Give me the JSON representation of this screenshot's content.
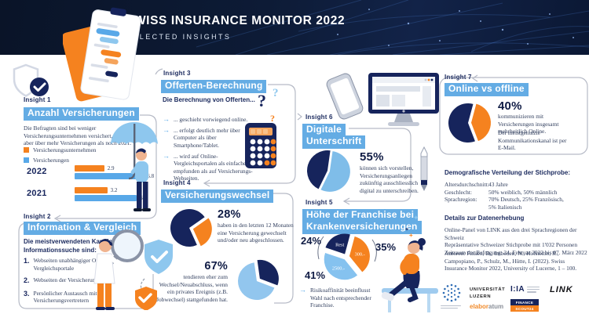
{
  "palette": {
    "navy": "#16245c",
    "orange": "#f5821f",
    "blue": "#58a8e8",
    "lightblue": "#8ec7ee",
    "strip_blue": "#64ace4",
    "header_bg": "#0c1730"
  },
  "header": {
    "title": "SWISS INSURANCE MONITOR 2022",
    "subtitle": "SELECTED INSIGHTS"
  },
  "insight1": {
    "label": "Insight 1",
    "title": "Anzahl Versicherungen",
    "body": "Die Befragten sind bei weniger Versicherungsunternehmen versichert, verfügen aber über mehr Versicherungen als noch 2021.",
    "legend": [
      {
        "label": "Versicherungsunternehmen",
        "color": "#f5821f"
      },
      {
        "label": "Versicherungen",
        "color": "#58a8e8"
      }
    ],
    "chart": {
      "rows": [
        {
          "year": "2022",
          "values": [
            2.9,
            6.8
          ]
        },
        {
          "year": "2021",
          "values": [
            3.2,
            6.1
          ]
        }
      ]
    }
  },
  "insight2": {
    "label": "Insight 2",
    "title": "Information & Vergleich",
    "intro": "Die meistverwendeten Kanäle zur Informationssuche sind:",
    "items": [
      {
        "n": "1.",
        "t": "Webseiten unabhängiger Online-Vergleichsportale"
      },
      {
        "n": "2.",
        "t": "Webseiten der Versicherungen"
      },
      {
        "n": "3.",
        "t": "Persönlicher Austausch mit Versicherungsvertretern"
      }
    ]
  },
  "insight3": {
    "label": "Insight 3",
    "title": "Offerten-Berechnung",
    "intro": "Die Berechnung von Offerten...",
    "bullets": [
      "... geschieht vorwiegend online.",
      "... erfolgt deutlich mehr über Computer als über Smartphone/Tablet.",
      "... wird auf Online-Vergleichsportalen als einfacher empfunden als auf Versicherungs-Webseiten."
    ]
  },
  "insight4": {
    "label": "Insight 4",
    "title": "Versicherungswechsel",
    "stat1": {
      "value": "28%",
      "text": "haben in den letzten 12 Monaten eine Versicherung gewechselt und/oder neu abgeschlossen."
    },
    "stat2": {
      "value": "67%",
      "text": "tendieren eher zum Wechsel/Neuabschluss, wenn ein privates Ereignis (z.B. Jobwechsel) stattgefunden hat."
    }
  },
  "insight5": {
    "label": "Insight 5",
    "title_line1": "Höhe der Franchise bei",
    "title_line2": "Krankenversicherungen",
    "pct_labels": [
      "24%",
      "35%",
      "41%"
    ],
    "bullet": "Risikoaffinität beeinflusst Wahl nach entsprechender Franchise."
  },
  "insight6": {
    "label": "Insight 6",
    "title_line1": "Digitale",
    "title_line2": "Unterschrift",
    "stat": {
      "value": "55%",
      "text": "können sich vorstellen, Versicherungsanliegen zukünftig ausschliesslich digital zu unterschreiben."
    }
  },
  "insight7": {
    "label": "Insight 7",
    "title": "Online vs offline",
    "stat": {
      "value": "40%",
      "text1": "kommunizieren mit Versicherungen insgesamt mehrheitlich Online.",
      "text2": "Der meistgenutzte Kommunikationskanal ist per E-Mail."
    }
  },
  "demographics": {
    "heading": "Demografische Verteilung der Stichprobe:",
    "rows": [
      {
        "term": "Altersdurchschnitt:",
        "value": "43 Jahre"
      },
      {
        "term": "Geschlecht:",
        "value": "50% weiblich, 50% männlich"
      },
      {
        "term": "Sprachregion:",
        "value": "70% Deutsch, 25% Französisch,",
        "value2": "5% Italienisch"
      }
    ]
  },
  "details": {
    "heading": "Details zur Datenerhebung",
    "lines": [
      "Online-Panel von LINK aus den drei Sprachregionen der Schweiz",
      "Repräsentative Schweizer Stichprobe mit 1'032 Personen",
      "Zeitraum der Befragung: 24. Februar 2022 bis 07. März 2022"
    ],
    "authors": "Autoren: Finken, D., Imboden, N., Hofstetter, R., Campopiano, P., Schulz, M., Hütte, I. (2022). Swiss Insurance Monitor 2022, University of Lucerne, 1 – 100."
  },
  "logos": {
    "university_line1": "UNIVERSITÄT",
    "university_line2": "LUZERN",
    "ima": "I:IA",
    "link": "LINK",
    "elaboratum_a": "elabor",
    "elaboratum_b": "atum",
    "finance": "FINANCE",
    "scout": "SCOUT24"
  },
  "decor": {
    "qmark1": "?",
    "qmark2": "?",
    "qmark3": "?",
    "plus": "+",
    "star": "✦"
  },
  "pies": {
    "wechsel28": {
      "size": 58,
      "rotate": 55,
      "pad": 5,
      "slices": [
        {
          "value": 28,
          "color": "#f5821f",
          "explode": 5
        },
        {
          "value": 72,
          "color": "#16245c"
        }
      ]
    },
    "wechsel67": {
      "size": 58,
      "rotate": -8,
      "pad": 5,
      "slices": [
        {
          "value": 33,
          "color": "#16245c",
          "explode": 5
        },
        {
          "value": 67,
          "color": "#92c6ee"
        }
      ]
    },
    "digital55": {
      "size": 62,
      "rotate": 8,
      "pad": 5,
      "slices": [
        {
          "value": 55,
          "color": "#7fbde9",
          "explode": 3
        },
        {
          "value": 45,
          "color": "#16245c"
        }
      ]
    },
    "franchise": {
      "size": 64,
      "rotate": 15,
      "pad": 6,
      "labelSize": 6.3,
      "slices": [
        {
          "value": 35,
          "color": "#f5821f",
          "explode": 4,
          "label": "300.-"
        },
        {
          "value": 41,
          "color": "#85c2ef",
          "explode": 4,
          "label": "2500.-"
        },
        {
          "value": 24,
          "color": "#16245c",
          "explode": 4,
          "label": "Rest"
        }
      ]
    },
    "online40": {
      "size": 60,
      "rotate": 15,
      "pad": 5,
      "slices": [
        {
          "value": 40,
          "color": "#f5821f",
          "explode": 4
        },
        {
          "value": 60,
          "color": "#16245c"
        }
      ]
    }
  },
  "chart_data": [
    {
      "type": "bar",
      "title": "Anzahl Versicherungen",
      "categories": [
        "2022",
        "2021"
      ],
      "series": [
        {
          "name": "Versicherungsunternehmen",
          "values": [
            2.9,
            3.2
          ],
          "color": "#f5821f"
        },
        {
          "name": "Versicherungen",
          "values": [
            6.8,
            6.1
          ],
          "color": "#58a8e8"
        }
      ],
      "xlim": [
        0,
        8
      ],
      "legend_position": "top",
      "grid": false
    },
    {
      "type": "pie",
      "title": "Versicherungswechsel – letzte 12 Monate",
      "labels": [
        "28%",
        ""
      ],
      "values": [
        28,
        72
      ],
      "colors": [
        "#f5821f",
        "#16245c"
      ]
    },
    {
      "type": "pie",
      "title": "Wechsel bei privatem Ereignis",
      "labels": [
        "67%",
        ""
      ],
      "values": [
        67,
        33
      ],
      "colors": [
        "#92c6ee",
        "#16245c"
      ]
    },
    {
      "type": "pie",
      "title": "Digitale Unterschrift",
      "labels": [
        "55%",
        ""
      ],
      "values": [
        55,
        45
      ],
      "colors": [
        "#7fbde9",
        "#16245c"
      ]
    },
    {
      "type": "pie",
      "title": "Höhe der Franchise bei Krankenversicherungen",
      "labels": [
        "300.-",
        "2500.-",
        "Rest"
      ],
      "values": [
        35,
        41,
        24
      ],
      "colors": [
        "#f5821f",
        "#85c2ef",
        "#16245c"
      ]
    },
    {
      "type": "pie",
      "title": "Online vs offline",
      "labels": [
        "40%",
        ""
      ],
      "values": [
        40,
        60
      ],
      "colors": [
        "#f5821f",
        "#16245c"
      ]
    }
  ]
}
